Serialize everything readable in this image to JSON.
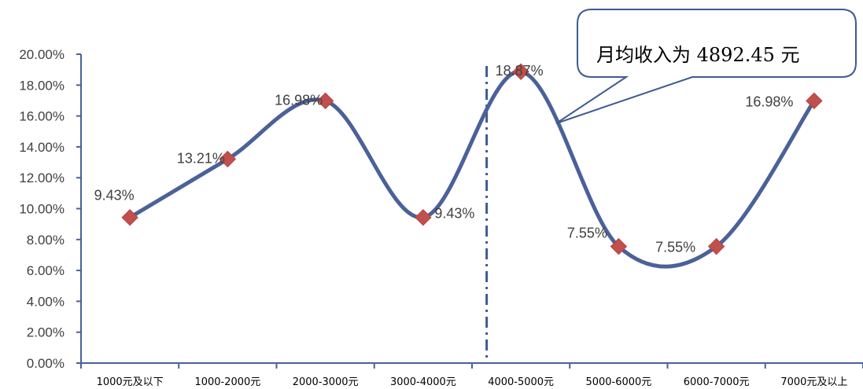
{
  "chart_data": {
    "type": "line",
    "smooth": true,
    "categories": [
      "1000元及以下",
      "1000-2000元",
      "2000-3000元",
      "3000-4000元",
      "4000-5000元",
      "5000-6000元",
      "6000-7000元",
      "7000元及以上"
    ],
    "values": [
      9.43,
      13.21,
      16.98,
      9.43,
      18.87,
      7.55,
      7.55,
      16.98
    ],
    "data_labels": [
      "9.43%",
      "13.21%",
      "16.98%",
      "9.43%",
      "18.87%",
      "7.55%",
      "7.55%",
      "16.98%"
    ],
    "ylim": [
      0,
      20
    ],
    "ytick_values": [
      0,
      2,
      4,
      6,
      8,
      10,
      12,
      14,
      16,
      18,
      20
    ],
    "yticks": [
      "0.00%",
      "2.00%",
      "4.00%",
      "6.00%",
      "8.00%",
      "10.00%",
      "12.00%",
      "14.00%",
      "16.00%",
      "18.00%",
      "20.00%"
    ],
    "grid": false,
    "legend": "none",
    "line_color": "#4A6199",
    "marker_color": "#C0504D",
    "marker": "diamond",
    "reference_line": {
      "position": 4.15,
      "style": "dash-dot",
      "color": "#3F5A91"
    },
    "annotation": {
      "text": "月均收入为 4892.45 元"
    }
  }
}
